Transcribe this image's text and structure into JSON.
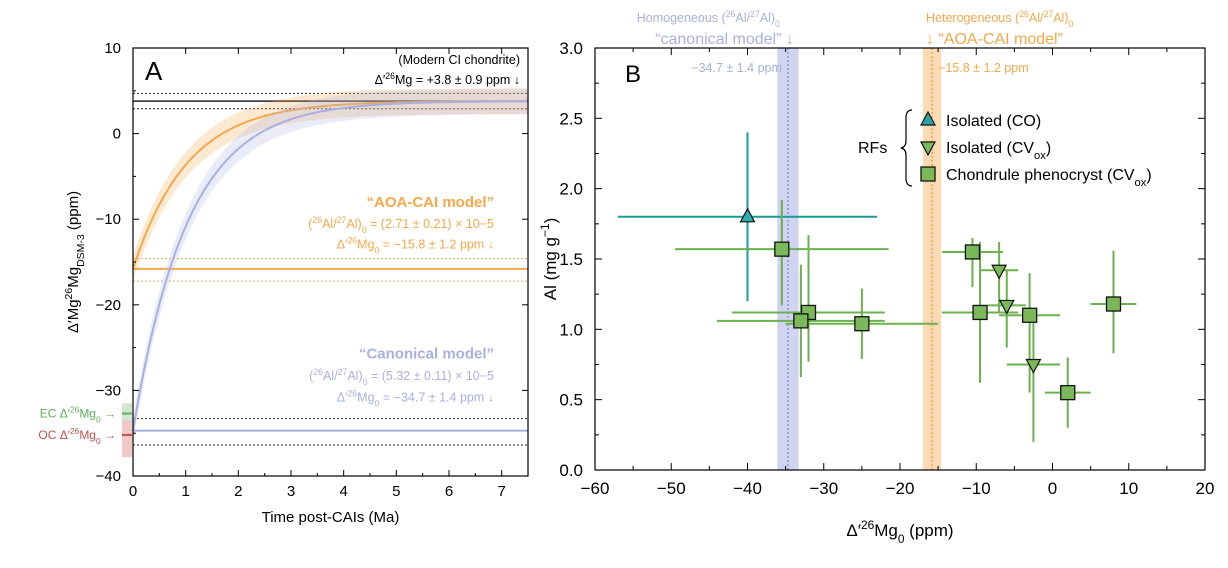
{
  "chart_data": [
    {
      "panel": "A",
      "type": "line",
      "xlabel": "Time post-CAIs (Ma)",
      "ylabel_main": "Δ′26Mg",
      "ylabel_sub": "DSM-3",
      "ylabel_unit": " (ppm)",
      "xlim": [
        0,
        7.5
      ],
      "ylim": [
        -40,
        10
      ],
      "xticks": [
        0,
        1,
        2,
        3,
        4,
        5,
        6,
        7
      ],
      "yticks": [
        -40,
        -30,
        -20,
        -10,
        0,
        10
      ],
      "colors": {
        "orange": "#f5a84a",
        "blue": "#a9afe0",
        "green": "#5fae5a",
        "red": "#c0504d",
        "dark": "#222222"
      },
      "modern": {
        "title": "(Modern CI chondrite)",
        "value": 3.8,
        "err": 0.9,
        "label": "Δ′26Mg = +3.8 ± 0.9 ppm ↓"
      },
      "series": [
        {
          "key": "aoa",
          "initial": -15.8,
          "err": 1.2,
          "final": 3.8,
          "title": "“AOA-CAI model”",
          "ratio": "(26Al/27Al)0 = (2.71 ± 0.21) × 10−5",
          "initial_label": "Δ′26Mg0 = −15.8 ± 1.2 ppm ↓"
        },
        {
          "key": "can",
          "initial": -34.7,
          "err": 1.4,
          "final": 3.8,
          "title": "“Canonical model”",
          "ratio": "(26Al/27Al)0 = (5.32 ± 0.11) × 10−5",
          "initial_label": "Δ′26Mg0 = −34.7 ± 1.4 ppm ↓"
        }
      ],
      "side_labels": {
        "ec": "EC Δ′26Mg0 →",
        "oc": "OC Δ′26Mg0 →"
      }
    },
    {
      "panel": "B",
      "type": "scatter",
      "xlabel": "Δ′26Mg0 (ppm)",
      "ylabel": "Al (mg g−1)",
      "xlim": [
        -60,
        20
      ],
      "ylim": [
        0,
        3
      ],
      "xticks": [
        -60,
        -50,
        -40,
        -30,
        -20,
        -10,
        0,
        10,
        20
      ],
      "yticks": [
        0.0,
        0.5,
        1.0,
        1.5,
        2.0,
        2.5,
        3.0
      ],
      "ytick_labels": [
        "0.0",
        "0.5",
        "1.0",
        "1.5",
        "2.0",
        "2.5",
        "3.0"
      ],
      "bands": [
        {
          "key": "can",
          "center": -34.7,
          "err": 1.4,
          "top": "Homogeneous (26Al/27Al)0",
          "name": "“canonical model” ↓",
          "value": "−34.7 ± 1.4 ppm"
        },
        {
          "key": "aoa",
          "center": -15.8,
          "err": 1.2,
          "top": "Heterogeneous (26Al/27Al)0",
          "name": "↓ “AOA-CAI model”",
          "value": "−15.8 ± 1.2 ppm"
        }
      ],
      "legend_group": "RFs",
      "legend": [
        {
          "marker": "triangle-up",
          "color": "#2aa5a5",
          "label": "Isolated (CO)"
        },
        {
          "marker": "triangle-down",
          "color": "#7ab85a",
          "label": "Isolated (CVox)"
        },
        {
          "marker": "square",
          "color": "#7ab85a",
          "label": "Chondrule phenocryst (CVox)"
        }
      ],
      "points": [
        {
          "type": "co",
          "x": -40,
          "y": 1.8,
          "xerr": 17,
          "yerr_lo": 0.6,
          "yerr_hi": 0.6
        },
        {
          "type": "cv",
          "x": -35.5,
          "y": 1.57,
          "xerr": 14,
          "yerr_lo": 0.4,
          "yerr_hi": 0.35
        },
        {
          "type": "cv",
          "x": -32,
          "y": 1.12,
          "xerr": 10,
          "yerr_lo": 0.35,
          "yerr_hi": 0.55
        },
        {
          "type": "cv",
          "x": -33,
          "y": 1.06,
          "xerr": 11,
          "yerr_lo": 0.4,
          "yerr_hi": 0.4
        },
        {
          "type": "cv",
          "x": -25,
          "y": 1.04,
          "xerr": 10,
          "yerr_lo": 0.25,
          "yerr_hi": 0.25
        },
        {
          "type": "cv",
          "x": -10.5,
          "y": 1.55,
          "xerr": 4,
          "yerr_lo": 0.25,
          "yerr_hi": 0.1
        },
        {
          "type": "cv",
          "x": -9.5,
          "y": 1.12,
          "xerr": 5,
          "yerr_lo": 0.5,
          "yerr_hi": 0.5
        },
        {
          "type": "cv",
          "x": -3,
          "y": 1.1,
          "xerr": 4,
          "yerr_lo": 0.55,
          "yerr_hi": 0.3
        },
        {
          "type": "cv",
          "x": 2,
          "y": 0.55,
          "xerr": 3,
          "yerr_lo": 0.25,
          "yerr_hi": 0.25
        },
        {
          "type": "cv",
          "x": 8,
          "y": 1.18,
          "xerr": 3,
          "yerr_lo": 0.35,
          "yerr_hi": 0.38
        },
        {
          "type": "cvtri",
          "x": -7,
          "y": 1.42,
          "xerr": 2.5,
          "yerr_lo": 0.3,
          "yerr_hi": 0.2
        },
        {
          "type": "cvtri",
          "x": -6,
          "y": 1.17,
          "xerr": 2.5,
          "yerr_lo": 0.3,
          "yerr_hi": 0.25
        },
        {
          "type": "cvtri",
          "x": -2.5,
          "y": 0.75,
          "xerr": 3.5,
          "yerr_lo": 0.55,
          "yerr_hi": 0.3
        }
      ]
    }
  ]
}
